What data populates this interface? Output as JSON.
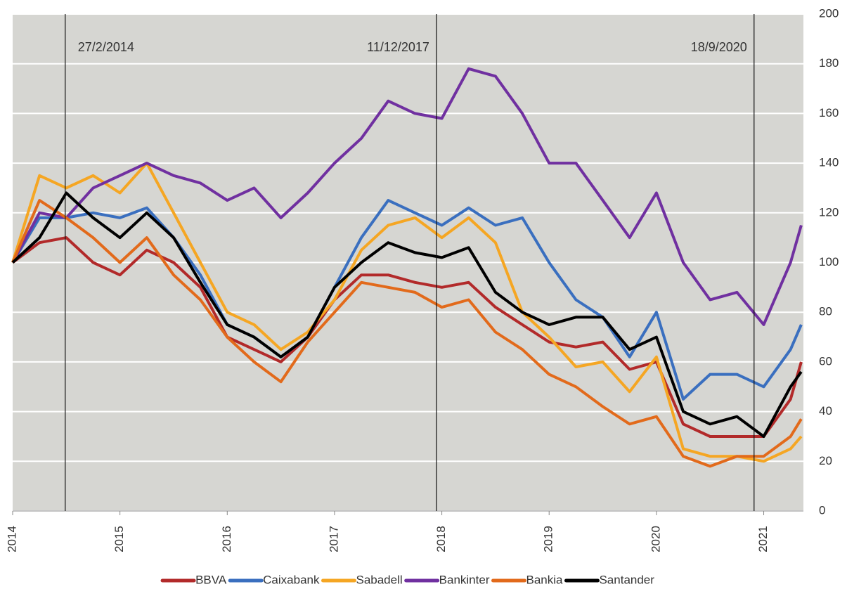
{
  "chart_data": {
    "type": "line",
    "x": [
      2014,
      2014.25,
      2014.5,
      2014.75,
      2015,
      2015.25,
      2015.5,
      2015.75,
      2016,
      2016.25,
      2016.5,
      2016.75,
      2017,
      2017.25,
      2017.5,
      2017.75,
      2018,
      2018.25,
      2018.5,
      2018.75,
      2019,
      2019.25,
      2019.5,
      2019.75,
      2020,
      2020.25,
      2020.5,
      2020.75,
      2021,
      2021.25,
      2021.35
    ],
    "series": [
      {
        "name": "BBVA",
        "color": "#b22a2a",
        "values": [
          100,
          108,
          110,
          100,
          95,
          105,
          100,
          90,
          70,
          65,
          60,
          70,
          85,
          95,
          95,
          92,
          90,
          92,
          82,
          75,
          68,
          66,
          68,
          57,
          60,
          35,
          30,
          30,
          30,
          45,
          60
        ]
      },
      {
        "name": "Caixabank",
        "color": "#3a6fbf",
        "values": [
          100,
          118,
          118,
          120,
          118,
          122,
          110,
          95,
          75,
          70,
          62,
          70,
          90,
          110,
          125,
          120,
          115,
          122,
          115,
          118,
          100,
          85,
          78,
          62,
          80,
          45,
          55,
          55,
          50,
          65,
          75
        ]
      },
      {
        "name": "Sabadell",
        "color": "#f5a623",
        "values": [
          100,
          135,
          130,
          135,
          128,
          140,
          120,
          100,
          80,
          75,
          65,
          72,
          85,
          105,
          115,
          118,
          110,
          118,
          108,
          80,
          70,
          58,
          60,
          48,
          62,
          25,
          22,
          22,
          20,
          25,
          30
        ]
      },
      {
        "name": "Bankinter",
        "color": "#7030a0",
        "values": [
          100,
          120,
          118,
          130,
          135,
          140,
          135,
          132,
          125,
          130,
          118,
          128,
          140,
          150,
          165,
          160,
          158,
          178,
          175,
          160,
          140,
          140,
          125,
          110,
          128,
          100,
          85,
          88,
          75,
          100,
          115
        ]
      },
      {
        "name": "Bankia",
        "color": "#e26a1b",
        "values": [
          100,
          125,
          118,
          110,
          100,
          110,
          95,
          85,
          70,
          60,
          52,
          68,
          80,
          92,
          90,
          88,
          82,
          85,
          72,
          65,
          55,
          50,
          42,
          35,
          38,
          22,
          18,
          22,
          22,
          30,
          37
        ]
      },
      {
        "name": "Santander",
        "color": "#000000",
        "values": [
          100,
          110,
          128,
          118,
          110,
          120,
          110,
          92,
          75,
          70,
          62,
          70,
          90,
          100,
          108,
          104,
          102,
          106,
          88,
          80,
          75,
          78,
          78,
          65,
          70,
          40,
          35,
          38,
          30,
          50,
          56
        ]
      }
    ],
    "xlim": [
      2014,
      2021.37
    ],
    "xticks": [
      2014,
      2015,
      2016,
      2017,
      2018,
      2019,
      2020,
      2021
    ],
    "ylim": [
      0,
      200
    ],
    "yticks": [
      0,
      20,
      40,
      60,
      80,
      100,
      120,
      140,
      160,
      180,
      200
    ],
    "grid": true,
    "annotations": [
      {
        "text": "27/2/2014",
        "x": 2014.49
      },
      {
        "text": "11/12/2017",
        "x": 2017.95
      },
      {
        "text": "18/9/2020",
        "x": 2020.91
      }
    ]
  }
}
